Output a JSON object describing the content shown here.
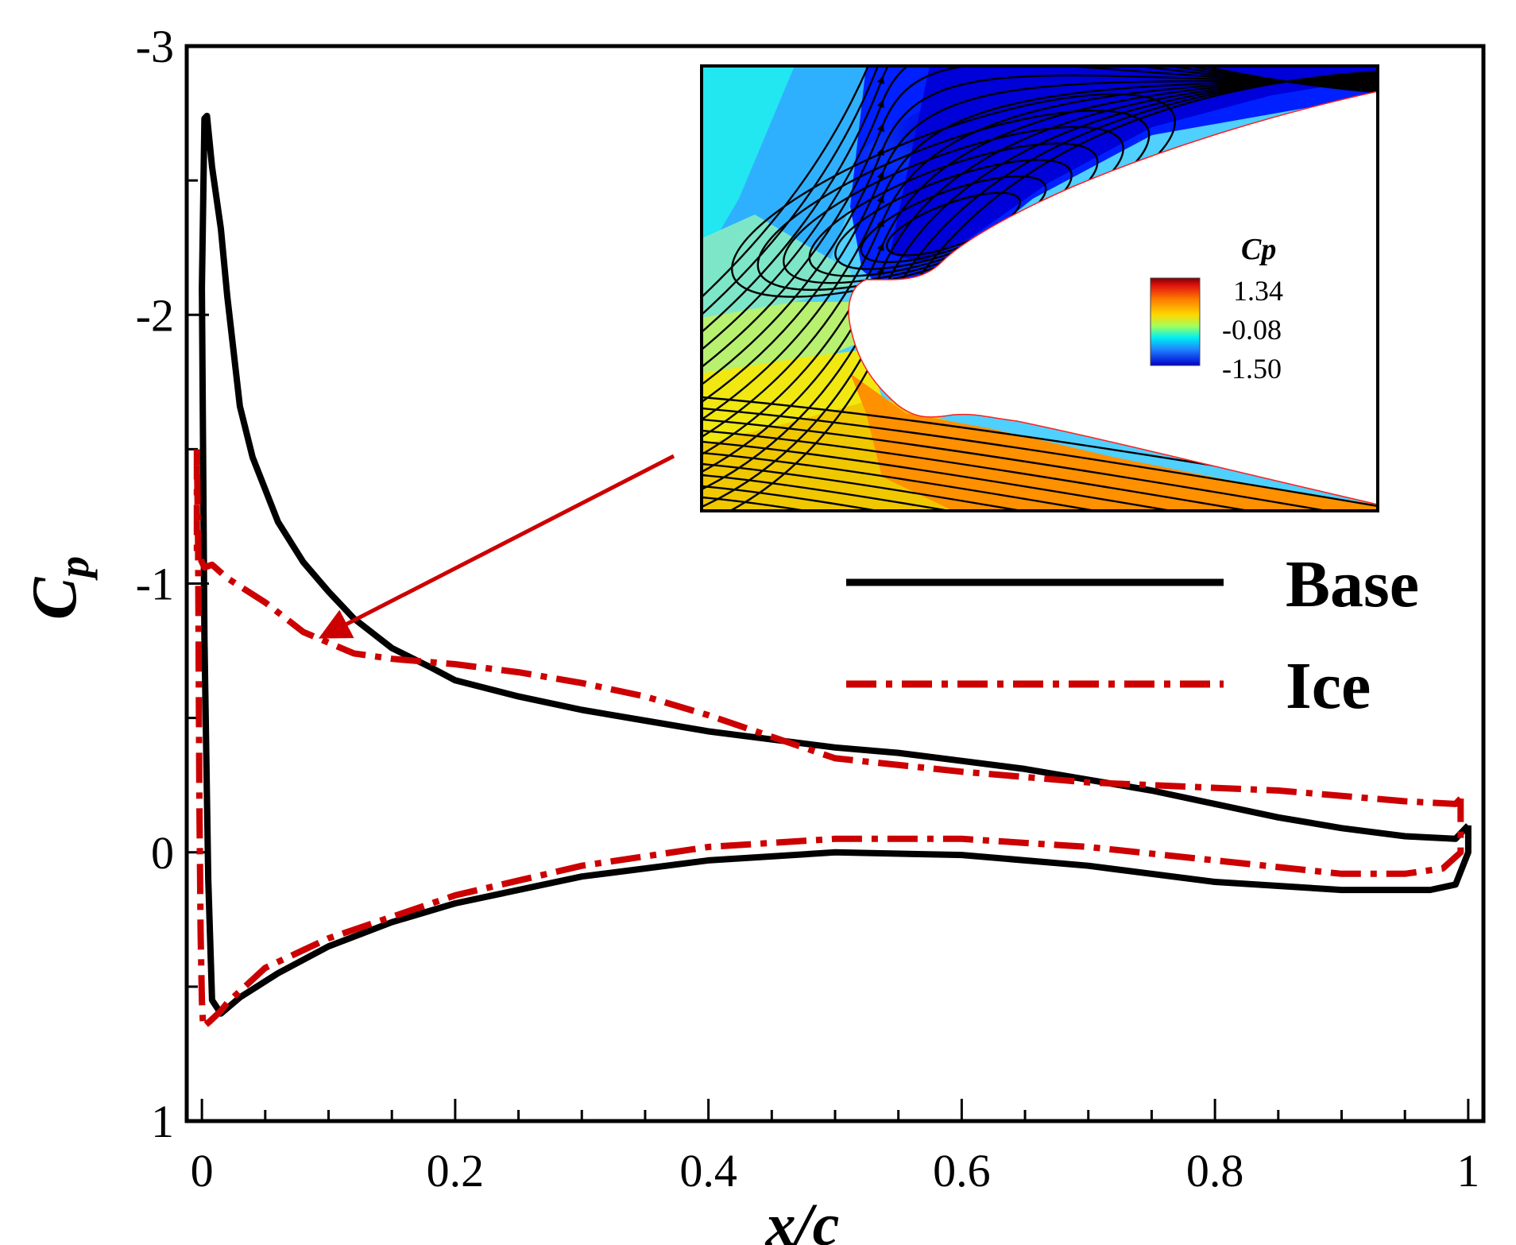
{
  "chart_data": {
    "type": "line",
    "title": "",
    "xlabel": "x/c",
    "ylabel_main": "C",
    "ylabel_sub": "p",
    "xlim": [
      -0.012,
      1.012
    ],
    "ylim": [
      1,
      -3
    ],
    "y_inverted": true,
    "x_tick_labels": [
      {
        "value": 0,
        "label": "0"
      },
      {
        "value": 0.2,
        "label": "0.2"
      },
      {
        "value": 0.4,
        "label": "0.4"
      },
      {
        "value": 0.6,
        "label": "0.6"
      },
      {
        "value": 0.8,
        "label": "0.8"
      },
      {
        "value": 1,
        "label": "1"
      }
    ],
    "y_tick_labels": [
      {
        "value": -3,
        "label": "-3"
      },
      {
        "value": -2,
        "label": "-2"
      },
      {
        "value": -1,
        "label": "-1"
      },
      {
        "value": 0,
        "label": "0"
      },
      {
        "value": 1,
        "label": "1"
      }
    ],
    "legend_position": "right",
    "series": [
      {
        "name": "Base",
        "color": "#000000",
        "style": "solid",
        "points": [
          [
            1.0,
            -0.1
          ],
          [
            0.99,
            -0.05
          ],
          [
            0.95,
            -0.06
          ],
          [
            0.9,
            -0.09
          ],
          [
            0.85,
            -0.13
          ],
          [
            0.8,
            -0.18
          ],
          [
            0.75,
            -0.23
          ],
          [
            0.7,
            -0.27
          ],
          [
            0.65,
            -0.31
          ],
          [
            0.6,
            -0.34
          ],
          [
            0.55,
            -0.37
          ],
          [
            0.5,
            -0.39
          ],
          [
            0.45,
            -0.42
          ],
          [
            0.4,
            -0.45
          ],
          [
            0.35,
            -0.49
          ],
          [
            0.3,
            -0.53
          ],
          [
            0.25,
            -0.58
          ],
          [
            0.2,
            -0.64
          ],
          [
            0.18,
            -0.69
          ],
          [
            0.15,
            -0.76
          ],
          [
            0.12,
            -0.87
          ],
          [
            0.1,
            -0.97
          ],
          [
            0.08,
            -1.08
          ],
          [
            0.06,
            -1.23
          ],
          [
            0.04,
            -1.47
          ],
          [
            0.03,
            -1.66
          ],
          [
            0.02,
            -2.07
          ],
          [
            0.015,
            -2.32
          ],
          [
            0.008,
            -2.55
          ],
          [
            0.004,
            -2.74
          ],
          [
            0.002,
            -2.73
          ],
          [
            0.0,
            -2.1
          ],
          [
            0.002,
            -0.8
          ],
          [
            0.005,
            0.1
          ],
          [
            0.008,
            0.55
          ],
          [
            0.015,
            0.6
          ],
          [
            0.03,
            0.54
          ],
          [
            0.06,
            0.45
          ],
          [
            0.1,
            0.35
          ],
          [
            0.15,
            0.26
          ],
          [
            0.2,
            0.19
          ],
          [
            0.3,
            0.09
          ],
          [
            0.4,
            0.03
          ],
          [
            0.5,
            0.0
          ],
          [
            0.6,
            0.01
          ],
          [
            0.7,
            0.05
          ],
          [
            0.8,
            0.11
          ],
          [
            0.9,
            0.14
          ],
          [
            0.97,
            0.14
          ],
          [
            0.99,
            0.12
          ],
          [
            1.0,
            0.0
          ],
          [
            1.0,
            -0.1
          ]
        ]
      },
      {
        "name": "Ice",
        "color": "#cc0000",
        "style": "dashdot",
        "points": [
          [
            0.994,
            -0.2
          ],
          [
            0.99,
            -0.18
          ],
          [
            0.95,
            -0.19
          ],
          [
            0.9,
            -0.21
          ],
          [
            0.85,
            -0.23
          ],
          [
            0.8,
            -0.24
          ],
          [
            0.75,
            -0.25
          ],
          [
            0.7,
            -0.26
          ],
          [
            0.65,
            -0.28
          ],
          [
            0.6,
            -0.3
          ],
          [
            0.5,
            -0.35
          ],
          [
            0.45,
            -0.43
          ],
          [
            0.4,
            -0.51
          ],
          [
            0.35,
            -0.58
          ],
          [
            0.3,
            -0.63
          ],
          [
            0.25,
            -0.67
          ],
          [
            0.2,
            -0.7
          ],
          [
            0.15,
            -0.72
          ],
          [
            0.12,
            -0.74
          ],
          [
            0.1,
            -0.78
          ],
          [
            0.08,
            -0.82
          ],
          [
            0.05,
            -0.93
          ],
          [
            0.02,
            -1.02
          ],
          [
            0.008,
            -1.07
          ],
          [
            0.002,
            -1.06
          ],
          [
            -0.004,
            -1.12
          ],
          [
            -0.004,
            -1.5
          ],
          [
            -0.003,
            -1.15
          ],
          [
            -0.002,
            -0.2
          ],
          [
            -0.001,
            0.3
          ],
          [
            0.0,
            0.55
          ],
          [
            0.001,
            0.65
          ],
          [
            0.006,
            0.63
          ],
          [
            0.015,
            0.59
          ],
          [
            0.02,
            0.56
          ],
          [
            0.05,
            0.43
          ],
          [
            0.1,
            0.32
          ],
          [
            0.2,
            0.16
          ],
          [
            0.3,
            0.05
          ],
          [
            0.4,
            -0.02
          ],
          [
            0.5,
            -0.05
          ],
          [
            0.6,
            -0.05
          ],
          [
            0.7,
            -0.02
          ],
          [
            0.8,
            0.03
          ],
          [
            0.9,
            0.08
          ],
          [
            0.95,
            0.08
          ],
          [
            0.98,
            0.06
          ],
          [
            0.994,
            0.0
          ],
          [
            0.994,
            -0.2
          ]
        ]
      }
    ],
    "annotation": "arrow from inset to leading-edge suction peak region",
    "inset": {
      "description_type": "contour",
      "variable_label": "Cp",
      "colorbar_ticks": [
        "1.34",
        "-0.08",
        "-1.50"
      ]
    }
  },
  "colors": {
    "base": "#000000",
    "ice": "#cc0000",
    "arrow": "#cc0000"
  }
}
